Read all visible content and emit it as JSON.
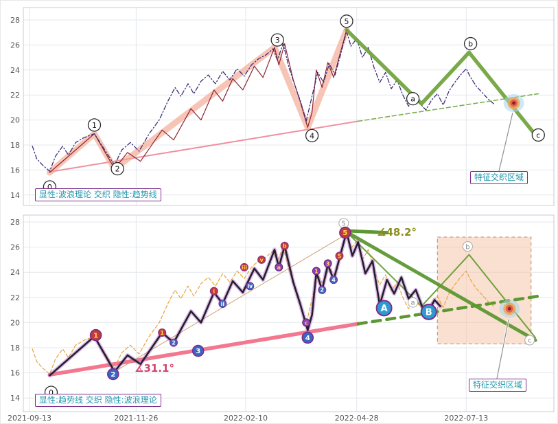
{
  "chart_data": {
    "type": "line",
    "title": "",
    "xlabel": "",
    "ylabel": "",
    "x_categories": [
      "2021-09-13",
      "2021-11-26",
      "2022-02-10",
      "2022-04-28",
      "2022-07-13"
    ],
    "x_ticks": [
      {
        "day": 0,
        "label": "2021-09-13"
      },
      {
        "day": 74,
        "label": "2021-11-26"
      },
      {
        "day": 150,
        "label": "2022-02-10"
      },
      {
        "day": 227,
        "label": "2022-04-28"
      },
      {
        "day": 303,
        "label": "2022-07-13"
      }
    ],
    "y_ticks": [
      14,
      16,
      18,
      20,
      22,
      24,
      26,
      28
    ],
    "ylim": [
      13.5,
      28.8
    ],
    "grid": true,
    "annotations": {
      "top_mode": "显性:波浪理论 交织 隐性:趋势线",
      "bottom_mode": "显性:趋势线 交织 隐性:波浪理论",
      "feature_zone": "特征交织区域",
      "angle_green": "∡48.2°",
      "angle_red": "∡31.1°"
    },
    "angles": {
      "green_deg": 48.2,
      "red_deg": 31.1
    },
    "series": {
      "price_zigzag": [
        [
          2,
          17.9
        ],
        [
          5,
          16.9
        ],
        [
          9,
          16.4
        ],
        [
          14,
          15.9
        ],
        [
          18,
          17.1
        ],
        [
          23,
          17.9
        ],
        [
          27,
          17.2
        ],
        [
          32,
          18.2
        ],
        [
          38,
          18.6
        ],
        [
          45,
          18.9
        ],
        [
          50,
          18.0
        ],
        [
          55,
          17.1
        ],
        [
          59,
          16.4
        ],
        [
          64,
          17.6
        ],
        [
          70,
          18.2
        ],
        [
          76,
          17.5
        ],
        [
          83,
          18.9
        ],
        [
          90,
          20.0
        ],
        [
          96,
          21.5
        ],
        [
          101,
          22.6
        ],
        [
          105,
          21.9
        ],
        [
          110,
          22.9
        ],
        [
          114,
          22.1
        ],
        [
          119,
          23.1
        ],
        [
          124,
          23.6
        ],
        [
          129,
          22.9
        ],
        [
          134,
          23.9
        ],
        [
          139,
          23.2
        ],
        [
          144,
          24.1
        ],
        [
          149,
          23.5
        ],
        [
          154,
          24.4
        ],
        [
          159,
          24.9
        ],
        [
          164,
          25.2
        ],
        [
          169,
          25.7
        ],
        [
          172,
          24.8
        ],
        [
          176,
          26.1
        ],
        [
          180,
          24.2
        ],
        [
          184,
          22.8
        ],
        [
          188,
          21.5
        ],
        [
          192,
          19.9
        ],
        [
          196,
          21.9
        ],
        [
          200,
          23.8
        ],
        [
          204,
          23.0
        ],
        [
          208,
          24.5
        ],
        [
          212,
          23.6
        ],
        [
          216,
          25.3
        ],
        [
          220,
          27.1
        ],
        [
          223,
          25.9
        ],
        [
          227,
          26.5
        ],
        [
          231,
          25.0
        ],
        [
          235,
          25.8
        ],
        [
          239,
          24.2
        ],
        [
          243,
          23.0
        ],
        [
          247,
          23.8
        ],
        [
          251,
          22.5
        ],
        [
          255,
          23.2
        ],
        [
          259,
          22.0
        ],
        [
          263,
          21.1
        ],
        [
          267,
          21.8
        ],
        [
          271,
          21.3
        ],
        [
          275,
          20.8
        ],
        [
          279,
          21.6
        ],
        [
          283,
          22.1
        ],
        [
          287,
          21.2
        ],
        [
          291,
          22.3
        ],
        [
          295,
          23.0
        ],
        [
          299,
          23.6
        ],
        [
          303,
          24.1
        ],
        [
          306,
          23.4
        ],
        [
          310,
          22.7
        ],
        [
          314,
          22.2
        ],
        [
          318,
          21.7
        ],
        [
          322,
          21.3
        ]
      ],
      "wave_detail": [
        [
          14,
          15.8
        ],
        [
          45,
          18.9
        ],
        [
          59,
          16.1
        ],
        [
          68,
          17.4
        ],
        [
          77,
          16.7
        ],
        [
          92,
          19.2
        ],
        [
          100,
          18.4
        ],
        [
          112,
          20.9
        ],
        [
          119,
          20.0
        ],
        [
          128,
          22.4
        ],
        [
          134,
          21.5
        ],
        [
          141,
          23.3
        ],
        [
          148,
          22.4
        ],
        [
          156,
          24.3
        ],
        [
          162,
          23.4
        ],
        [
          170,
          25.8
        ],
        [
          173,
          24.4
        ],
        [
          177,
          26.1
        ],
        [
          183,
          23.2
        ],
        [
          188,
          21.4
        ],
        [
          193,
          19.4
        ],
        [
          196,
          20.6
        ],
        [
          199,
          24.0
        ],
        [
          203,
          22.6
        ],
        [
          207,
          24.6
        ],
        [
          211,
          23.4
        ],
        [
          215,
          25.1
        ],
        [
          220,
          27.2
        ]
      ],
      "wave_detail_ext": [
        [
          220,
          27.2
        ],
        [
          224,
          25.3
        ],
        [
          228,
          26.4
        ],
        [
          233,
          23.9
        ],
        [
          238,
          24.9
        ],
        [
          243,
          21.4
        ],
        [
          248,
          23.4
        ],
        [
          253,
          22.3
        ],
        [
          258,
          23.6
        ],
        [
          263,
          21.9
        ],
        [
          268,
          22.6
        ],
        [
          273,
          21.1
        ],
        [
          277,
          20.9
        ],
        [
          281,
          21.8
        ],
        [
          285,
          21.3
        ]
      ],
      "impulse": [
        [
          14,
          15.8
        ],
        [
          45,
          18.9
        ],
        [
          59,
          16.1
        ],
        [
          170,
          25.8
        ],
        [
          193,
          19.4
        ],
        [
          220,
          27.2
        ]
      ],
      "abc": [
        [
          220,
          27.2
        ],
        [
          272,
          21.3
        ],
        [
          305,
          25.4
        ],
        [
          351,
          18.8
        ]
      ],
      "abc_straight": [
        [
          220,
          27.2
        ],
        [
          351,
          18.6
        ]
      ],
      "green_horizontal": [
        [
          220,
          27.3
        ],
        [
          248,
          27.15
        ]
      ],
      "trend_solid": [
        [
          14,
          15.85
        ],
        [
          228,
          19.9
        ]
      ],
      "trend_dashed": [
        [
          228,
          19.9
        ],
        [
          353,
          22.1
        ]
      ],
      "guide_tan": [
        [
          59,
          16.1
        ],
        [
          218,
          26.9
        ]
      ]
    },
    "panels": [
      {
        "name": "top",
        "lines": [
          {
            "series": "trend_solid",
            "color": "#ef8f9f",
            "width": 2
          },
          {
            "series": "trend_dashed",
            "color": "#7dae4e",
            "width": 1.6,
            "dash": "6 4"
          },
          {
            "series": "impulse",
            "color": "#f3a68e",
            "width": 9,
            "opacity": 0.65
          },
          {
            "series": "wave_detail",
            "color": "#8c2430",
            "width": 1.2
          },
          {
            "series": "price_zigzag",
            "color": "#3b2d7a",
            "width": 1.3,
            "dash": "6 3 1.5 3"
          },
          {
            "series": "abc",
            "color": "#6fa23b",
            "width": 5.5,
            "opacity": 0.92
          }
        ],
        "markers": [
          {
            "label": "0",
            "style": "white",
            "day": 14,
            "price": 14.65
          },
          {
            "label": "1",
            "style": "white",
            "day": 45,
            "price": 19.6
          },
          {
            "label": "2",
            "style": "white",
            "day": 61,
            "price": 16.1
          },
          {
            "label": "3",
            "style": "white",
            "day": 172,
            "price": 26.4
          },
          {
            "label": "4",
            "style": "white",
            "day": 196,
            "price": 18.75
          },
          {
            "label": "5",
            "style": "white",
            "day": 220,
            "price": 27.9
          },
          {
            "label": "a",
            "style": "white",
            "day": 266,
            "price": 21.7
          },
          {
            "label": "b",
            "style": "white",
            "day": 306,
            "price": 26.1
          },
          {
            "label": "c",
            "style": "white",
            "day": 353,
            "price": 18.8
          }
        ],
        "target": {
          "day": 336,
          "price": 21.35
        }
      },
      {
        "name": "bottom",
        "lines": [
          {
            "series": "trend_solid",
            "color": "#f2778f",
            "width": 5.5
          },
          {
            "series": "trend_dashed",
            "color": "#5d9732",
            "width": 4.5,
            "dash": "12 9"
          },
          {
            "series": "guide_tan",
            "color": "#c8955f",
            "width": 1,
            "opacity": 0.9
          },
          {
            "series": "price_zigzag",
            "color": "#e8a33d",
            "width": 1.2,
            "dash": "5 3"
          },
          {
            "series": "abc",
            "color": "#6fa23b",
            "width": 2
          },
          {
            "series": "abc_straight",
            "color": "#5d9732",
            "width": 5,
            "opacity": 0.95
          },
          {
            "series": "green_horizontal",
            "color": "#5d9732",
            "width": 5
          },
          {
            "series": "wave_detail",
            "color": "#b05ad0",
            "width": 6,
            "opacity": 0.4
          },
          {
            "series": "wave_detail_ext",
            "color": "#b05ad0",
            "width": 6,
            "opacity": 0.4
          },
          {
            "series": "wave_detail",
            "color": "#23202c",
            "width": 2.6
          },
          {
            "series": "wave_detail_ext",
            "color": "#23202c",
            "width": 2.6
          }
        ],
        "rect": {
          "day0": 283,
          "day1": 348,
          "p0": 18.3,
          "p1": 26.8
        },
        "sub_markers": [
          {
            "label": "1",
            "style": "sub-red",
            "day": 92,
            "price": 19.2
          },
          {
            "label": "2",
            "style": "sub-blue",
            "day": 100,
            "price": 18.4
          },
          {
            "label": "i",
            "style": "sub-red",
            "day": 128,
            "price": 22.5
          },
          {
            "label": "ii",
            "style": "sub-blue",
            "day": 134,
            "price": 21.5
          },
          {
            "label": "iii",
            "style": "sub-red",
            "day": 149,
            "price": 24.4
          },
          {
            "label": "iv",
            "style": "sub-blue",
            "day": 153,
            "price": 22.9
          },
          {
            "label": "v",
            "style": "sub-red",
            "day": 161,
            "price": 25.0
          },
          {
            "label": "a",
            "style": "sub-purple",
            "day": 173,
            "price": 24.4
          },
          {
            "label": "b",
            "style": "sub-red",
            "day": 177,
            "price": 26.1
          },
          {
            "label": "c",
            "style": "sub-purple",
            "day": 192,
            "price": 20.0
          },
          {
            "label": "1",
            "style": "sub-purple",
            "day": 199,
            "price": 24.1
          },
          {
            "label": "2",
            "style": "sub-blue",
            "day": 203,
            "price": 22.6
          },
          {
            "label": "3",
            "style": "sub-purple",
            "day": 207,
            "price": 24.7
          },
          {
            "label": "4",
            "style": "sub-blue",
            "day": 211,
            "price": 23.4
          },
          {
            "label": "5",
            "style": "sub-red",
            "day": 215,
            "price": 25.3
          }
        ],
        "markers": [
          {
            "label": "0",
            "style": "white",
            "day": 15,
            "price": 14.45
          },
          {
            "label": "1",
            "style": "red",
            "day": 46,
            "price": 19.0
          },
          {
            "label": "2",
            "style": "blue",
            "day": 58,
            "price": 15.9
          },
          {
            "label": "3",
            "style": "blue",
            "day": 117,
            "price": 17.75
          },
          {
            "label": "4",
            "style": "blue",
            "day": 193,
            "price": 18.8
          },
          {
            "label": "5",
            "style": "ghost",
            "day": 218,
            "price": 27.9
          },
          {
            "label": "5",
            "style": "red",
            "day": 219,
            "price": 27.15
          },
          {
            "label": "a",
            "style": "ghost",
            "day": 266,
            "price": 21.6
          },
          {
            "label": "b",
            "style": "ghost",
            "day": 304,
            "price": 26.05
          },
          {
            "label": "c",
            "style": "ghost",
            "day": 347,
            "price": 18.6
          },
          {
            "label": "A",
            "style": "big-blue",
            "day": 246,
            "price": 21.15
          },
          {
            "label": "B",
            "style": "big-blue",
            "day": 277,
            "price": 20.85
          }
        ],
        "target": {
          "day": 333,
          "price": 21.1
        }
      }
    ]
  }
}
